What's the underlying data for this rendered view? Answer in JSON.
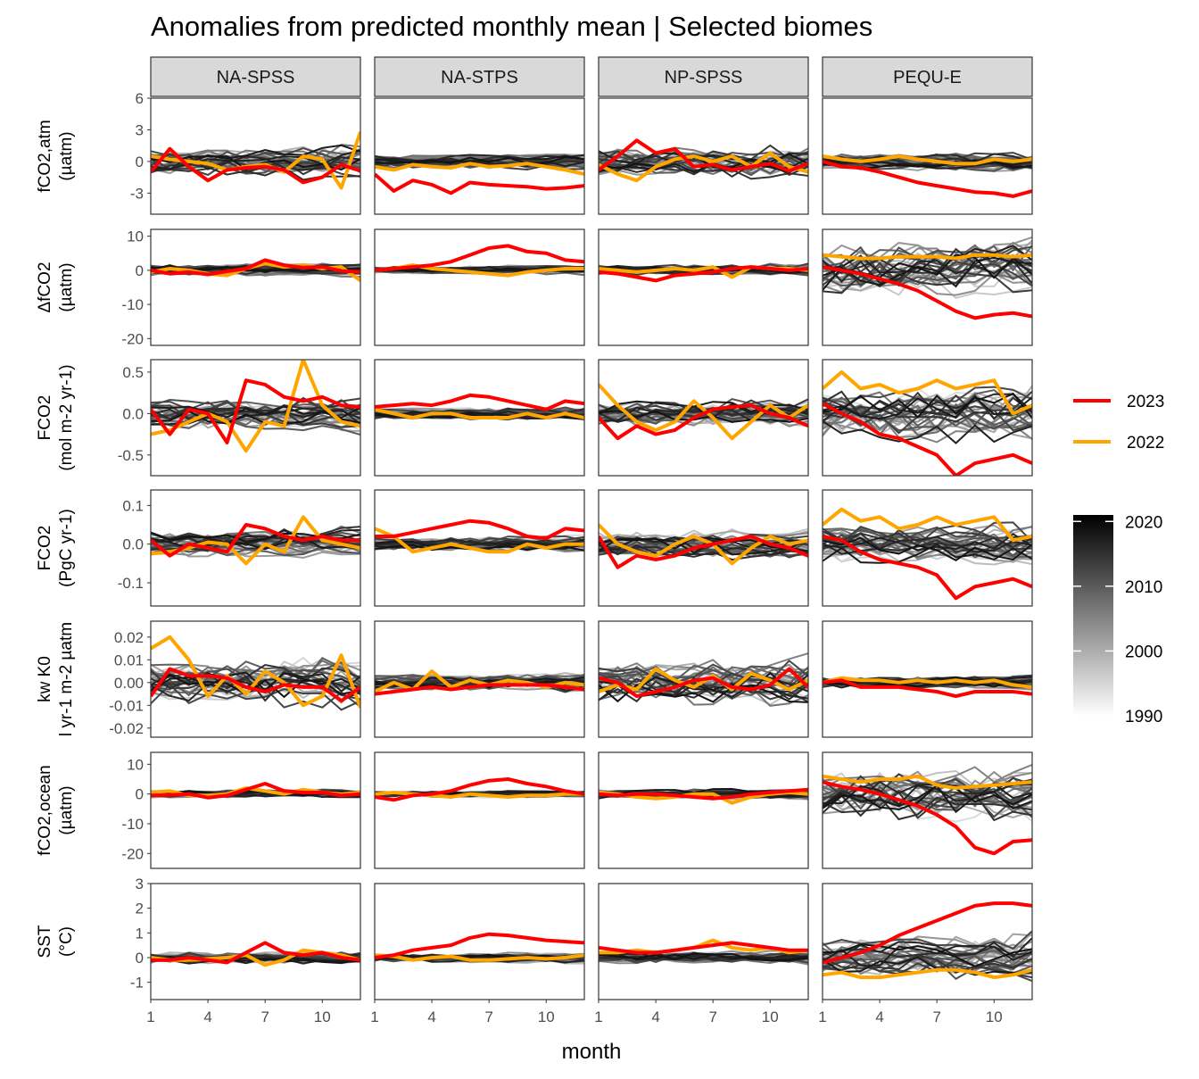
{
  "chart_data": {
    "type": "line",
    "title": "Anomalies from predicted monthly mean | Selected biomes",
    "xlabel": "month",
    "x_ticks": [
      1,
      4,
      7,
      10
    ],
    "xlim": [
      1,
      12
    ],
    "facet_columns": [
      "NA-SPSS",
      "NA-STPS",
      "NP-SPSS",
      "PEQU-E"
    ],
    "facet_rows": [
      {
        "label_lines": [
          "fCO2,atm",
          "(µatm)"
        ],
        "ylim": [
          -5,
          6
        ],
        "y_ticks": [
          6,
          3,
          0,
          -3
        ]
      },
      {
        "label_lines": [
          "ΔfCO2",
          "(µatm)"
        ],
        "ylim": [
          -22,
          12
        ],
        "y_ticks": [
          10,
          0,
          -10,
          -20
        ]
      },
      {
        "label_lines": [
          "FCO2",
          "(mol m-2 yr-1)"
        ],
        "ylim": [
          -0.75,
          0.65
        ],
        "y_ticks": [
          0.5,
          0.0,
          -0.5
        ]
      },
      {
        "label_lines": [
          "FCO2",
          "(PgC yr-1)"
        ],
        "ylim": [
          -0.16,
          0.14
        ],
        "y_ticks": [
          0.1,
          0.0,
          -0.1
        ]
      },
      {
        "label_lines": [
          "kw K0",
          "l yr-1 m-2 µatm"
        ],
        "ylim": [
          -0.024,
          0.027
        ],
        "y_ticks": [
          0.02,
          0.01,
          0.0,
          -0.01,
          -0.02
        ]
      },
      {
        "label_lines": [
          "fCO2,ocean",
          "(µatm)"
        ],
        "ylim": [
          -25,
          14
        ],
        "y_ticks": [
          10,
          0,
          -10,
          -20
        ]
      },
      {
        "label_lines": [
          "SST",
          "(°C)"
        ],
        "ylim": [
          -1.7,
          3.0
        ],
        "y_ticks": [
          3,
          2,
          1,
          0,
          -1
        ]
      }
    ],
    "tick_labels": {
      "y": [
        [
          "6",
          "3",
          "0",
          "-3"
        ],
        [
          "10",
          "0",
          "-10",
          "-20"
        ],
        [
          "0.5",
          "0.0",
          "-0.5"
        ],
        [
          "0.1",
          "0.0",
          "-0.1"
        ],
        [
          "0.02",
          "0.01",
          "0.00",
          "-0.01",
          "-0.02"
        ],
        [
          "10",
          "0",
          "-10",
          "-20"
        ],
        [
          "3",
          "2",
          "1",
          "0",
          "-1"
        ]
      ],
      "x": [
        "1",
        "4",
        "7",
        "10"
      ]
    },
    "highlight_series": [
      {
        "name": "2023",
        "color": "#ff0000",
        "values": [
          [
            [
              -1.0,
              1.2,
              -0.5,
              -1.8,
              -0.8,
              -0.6,
              -0.5,
              -0.8,
              -2.0,
              -1.5,
              -0.3,
              -0.9
            ],
            [
              -1.2,
              -2.8,
              -1.8,
              -2.2,
              -3.0,
              -2.0,
              -2.2,
              -2.3,
              -2.4,
              -2.6,
              -2.5,
              -2.3
            ],
            [
              -0.8,
              0.5,
              2.0,
              0.8,
              1.2,
              -0.5,
              -0.3,
              -0.8,
              -0.5,
              -0.2,
              -0.9,
              -0.2
            ],
            [
              0.0,
              -0.5,
              -0.6,
              -1.0,
              -1.5,
              -2.0,
              -2.3,
              -2.6,
              -2.9,
              -3.0,
              -3.3,
              -2.8
            ]
          ],
          [
            [
              0.0,
              -1.0,
              -0.5,
              -1.2,
              -0.3,
              0.5,
              3.0,
              1.5,
              0.8,
              1.0,
              -0.2,
              -0.5
            ],
            [
              0.0,
              0.5,
              1.0,
              1.5,
              2.5,
              4.5,
              6.5,
              7.2,
              5.5,
              5.0,
              3.0,
              2.5
            ],
            [
              -0.5,
              -1.0,
              -2.0,
              -3.0,
              -1.5,
              -1.0,
              -0.5,
              0.5,
              1.0,
              0.5,
              0.0,
              0.5
            ],
            [
              1.0,
              0.0,
              -1.0,
              -2.5,
              -4.0,
              -6.0,
              -9.0,
              -12.0,
              -14.0,
              -13.0,
              -12.5,
              -13.5
            ]
          ],
          [
            [
              0.05,
              -0.25,
              0.05,
              0.0,
              -0.35,
              0.4,
              0.35,
              0.2,
              0.15,
              0.2,
              0.1,
              0.08
            ],
            [
              0.08,
              0.1,
              0.12,
              0.1,
              0.15,
              0.22,
              0.2,
              0.15,
              0.1,
              0.05,
              0.15,
              0.12
            ],
            [
              -0.05,
              -0.3,
              -0.15,
              -0.25,
              -0.2,
              -0.05,
              0.05,
              0.08,
              0.1,
              0.0,
              -0.05,
              -0.15
            ],
            [
              0.12,
              0.0,
              -0.1,
              -0.25,
              -0.3,
              -0.4,
              -0.5,
              -0.75,
              -0.6,
              -0.55,
              -0.5,
              -0.6
            ]
          ],
          [
            [
              0.01,
              -0.03,
              0.0,
              -0.01,
              -0.02,
              0.05,
              0.04,
              0.02,
              0.01,
              0.02,
              0.01,
              0.01
            ],
            [
              0.02,
              0.02,
              0.03,
              0.04,
              0.05,
              0.06,
              0.055,
              0.04,
              0.02,
              0.015,
              0.04,
              0.035
            ],
            [
              0.02,
              -0.06,
              -0.03,
              -0.04,
              -0.03,
              -0.01,
              0.0,
              0.01,
              0.02,
              0.0,
              -0.01,
              -0.03
            ],
            [
              0.02,
              0.01,
              -0.02,
              -0.04,
              -0.05,
              -0.06,
              -0.08,
              -0.14,
              -0.11,
              -0.1,
              -0.09,
              -0.11
            ]
          ],
          [
            [
              -0.006,
              0.006,
              0.003,
              0.003,
              0.002,
              -0.002,
              -0.004,
              -0.001,
              -0.002,
              -0.002,
              -0.008,
              -0.002
            ],
            [
              -0.005,
              -0.004,
              -0.003,
              -0.002,
              -0.003,
              -0.002,
              -0.001,
              -0.001,
              -0.001,
              -0.001,
              -0.002,
              -0.003
            ],
            [
              0.002,
              0.0,
              -0.006,
              -0.004,
              -0.002,
              0.001,
              0.002,
              -0.002,
              -0.003,
              -0.001,
              0.006,
              -0.002
            ],
            [
              0.0,
              0.001,
              -0.002,
              -0.002,
              -0.002,
              -0.003,
              -0.004,
              -0.006,
              -0.004,
              -0.004,
              -0.004,
              -0.005
            ]
          ],
          [
            [
              -0.5,
              -0.3,
              0.0,
              -1.2,
              -0.5,
              1.5,
              3.5,
              1.0,
              0.5,
              0.5,
              -0.5,
              0.0
            ],
            [
              -1.0,
              -2.0,
              -0.5,
              0.0,
              1.0,
              3.0,
              4.5,
              5.0,
              3.5,
              2.5,
              1.0,
              0.0
            ],
            [
              0.0,
              -0.5,
              0.0,
              0.0,
              -0.5,
              -1.0,
              -1.5,
              -1.0,
              0.0,
              0.5,
              1.0,
              1.5
            ],
            [
              4.0,
              2.5,
              1.5,
              0.0,
              -2.0,
              -4.0,
              -7.0,
              -11.0,
              -18.0,
              -20.0,
              -16.0,
              -15.5
            ]
          ],
          [
            [
              -0.1,
              -0.1,
              0.0,
              -0.1,
              -0.2,
              0.2,
              0.6,
              0.2,
              0.1,
              0.2,
              0.0,
              -0.1
            ],
            [
              0.0,
              0.1,
              0.3,
              0.4,
              0.5,
              0.8,
              0.95,
              0.9,
              0.8,
              0.7,
              0.65,
              0.6
            ],
            [
              0.4,
              0.3,
              0.2,
              0.2,
              0.3,
              0.4,
              0.5,
              0.6,
              0.5,
              0.4,
              0.3,
              0.3
            ],
            [
              -0.2,
              0.0,
              0.2,
              0.5,
              0.9,
              1.2,
              1.5,
              1.8,
              2.1,
              2.2,
              2.2,
              2.1
            ]
          ]
        ]
      },
      {
        "name": "2022",
        "color": "#ffa500",
        "values": [
          [
            [
              0.5,
              0.2,
              0.0,
              -0.2,
              -0.8,
              -0.5,
              -0.3,
              -1.0,
              0.5,
              0.2,
              -2.5,
              2.8
            ],
            [
              -0.5,
              -0.8,
              -0.3,
              -0.5,
              -0.6,
              -0.2,
              -0.5,
              -0.4,
              -0.2,
              -0.5,
              -0.8,
              -1.2
            ],
            [
              -0.3,
              -1.2,
              -1.8,
              -0.5,
              0.2,
              0.5,
              0.0,
              0.5,
              -0.5,
              0.8,
              -0.5,
              -1.0
            ],
            [
              0.5,
              0.2,
              0.0,
              0.2,
              0.5,
              0.2,
              0.0,
              -0.2,
              -0.2,
              0.2,
              0.0,
              0.2
            ]
          ],
          [
            [
              -0.5,
              0.5,
              0.0,
              -1.0,
              -1.5,
              0.5,
              2.0,
              1.0,
              1.5,
              0.5,
              1.0,
              -3.0
            ],
            [
              0.0,
              0.5,
              1.5,
              0.5,
              0.0,
              -0.5,
              -1.0,
              -1.5,
              -0.5,
              0.0,
              0.5,
              0.5
            ],
            [
              0.5,
              0.0,
              -0.5,
              0.0,
              0.5,
              0.0,
              1.0,
              -2.0,
              1.0,
              0.5,
              0.5,
              0.0
            ],
            [
              4.5,
              4.0,
              3.5,
              3.5,
              4.0,
              4.0,
              4.0,
              3.5,
              4.5,
              4.5,
              4.0,
              4.5
            ]
          ],
          [
            [
              -0.25,
              -0.2,
              -0.1,
              0.0,
              -0.1,
              -0.45,
              -0.1,
              -0.15,
              0.65,
              0.1,
              -0.1,
              -0.15
            ],
            [
              0.05,
              0.0,
              -0.05,
              0.0,
              0.0,
              -0.05,
              -0.05,
              -0.05,
              0.0,
              -0.05,
              0.0,
              -0.05
            ],
            [
              0.35,
              0.1,
              -0.1,
              -0.2,
              -0.1,
              0.15,
              -0.05,
              -0.3,
              -0.1,
              0.1,
              -0.05,
              0.1
            ],
            [
              0.3,
              0.5,
              0.3,
              0.35,
              0.25,
              0.3,
              0.4,
              0.3,
              0.35,
              0.4,
              0.0,
              0.1
            ]
          ],
          [
            [
              -0.025,
              -0.02,
              -0.01,
              0.005,
              0.0,
              -0.05,
              0.0,
              -0.02,
              0.07,
              0.01,
              0.0,
              -0.01
            ],
            [
              0.04,
              0.02,
              -0.02,
              -0.01,
              0.0,
              -0.01,
              -0.02,
              -0.02,
              0.0,
              -0.01,
              0.0,
              0.0
            ],
            [
              0.05,
              0.0,
              -0.02,
              -0.03,
              0.0,
              0.02,
              0.0,
              -0.05,
              -0.01,
              0.02,
              0.0,
              0.01
            ],
            [
              0.05,
              0.09,
              0.06,
              0.07,
              0.04,
              0.05,
              0.07,
              0.05,
              0.06,
              0.07,
              0.01,
              0.02
            ]
          ],
          [
            [
              0.015,
              0.02,
              0.01,
              -0.006,
              0.003,
              -0.005,
              0.005,
              0.0,
              -0.01,
              -0.006,
              0.012,
              -0.011
            ],
            [
              -0.004,
              0.0,
              -0.003,
              0.005,
              -0.002,
              0.001,
              -0.001,
              0.001,
              0.0,
              -0.002,
              0.0,
              -0.001
            ],
            [
              -0.004,
              -0.001,
              -0.003,
              0.006,
              0.001,
              -0.002,
              0.003,
              -0.003,
              0.004,
              0.001,
              -0.003,
              0.001
            ],
            [
              0.0,
              0.002,
              0.001,
              0.001,
              0.0,
              0.001,
              0.0,
              0.001,
              0.0,
              0.001,
              -0.001,
              -0.002
            ]
          ],
          [
            [
              0.5,
              1.0,
              -0.5,
              -0.5,
              0.0,
              2.0,
              1.0,
              0.0,
              1.5,
              0.5,
              0.0,
              0.5
            ],
            [
              0.0,
              0.5,
              0.0,
              -0.5,
              -1.0,
              0.0,
              -0.5,
              -1.0,
              -0.5,
              -0.5,
              0.0,
              0.0
            ],
            [
              0.5,
              0.0,
              -1.0,
              -1.5,
              -1.0,
              0.0,
              0.0,
              -3.0,
              -1.0,
              0.0,
              0.5,
              0.0
            ],
            [
              6.0,
              5.0,
              4.0,
              5.0,
              5.0,
              6.0,
              3.0,
              2.0,
              2.5,
              3.0,
              3.5,
              4.0
            ]
          ],
          [
            [
              0.0,
              -0.1,
              -0.1,
              -0.05,
              0.0,
              0.1,
              -0.3,
              -0.1,
              0.3,
              0.2,
              0.1,
              -0.1
            ],
            [
              0.1,
              0.05,
              -0.1,
              0.0,
              0.05,
              -0.1,
              -0.1,
              -0.05,
              0.0,
              -0.05,
              0.0,
              0.1
            ],
            [
              0.2,
              0.2,
              0.3,
              0.2,
              0.3,
              0.4,
              0.7,
              0.4,
              0.3,
              0.4,
              0.2,
              0.3
            ],
            [
              -0.7,
              -0.6,
              -0.8,
              -0.8,
              -0.7,
              -0.6,
              -0.5,
              -0.5,
              -0.6,
              -0.8,
              -0.7,
              -0.5
            ]
          ]
        ]
      }
    ],
    "background_series": {
      "description_years": [
        1990,
        2021
      ],
      "count_per_panel": 32,
      "amplitude_by_row_col": [
        [
          1.6,
          0.7,
          1.6,
          0.9
        ],
        [
          2.0,
          1.3,
          1.8,
          9.0
        ],
        [
          0.22,
          0.08,
          0.18,
          0.35
        ],
        [
          0.04,
          0.02,
          0.04,
          0.06
        ],
        [
          0.012,
          0.004,
          0.01,
          0.003
        ],
        [
          1.5,
          1.2,
          1.8,
          10.0
        ],
        [
          0.3,
          0.2,
          0.3,
          0.9
        ]
      ]
    },
    "legend": {
      "position": "right",
      "lines": [
        {
          "label": "2023",
          "color": "#ff0000"
        },
        {
          "label": "2022",
          "color": "#ffa500"
        }
      ],
      "colorbar": {
        "title": "",
        "range": [
          1990,
          2021
        ],
        "ticks": [
          2020,
          2010,
          2000,
          1990
        ],
        "color_low": "#ffffff",
        "color_high": "#000000"
      }
    },
    "grid": false
  }
}
